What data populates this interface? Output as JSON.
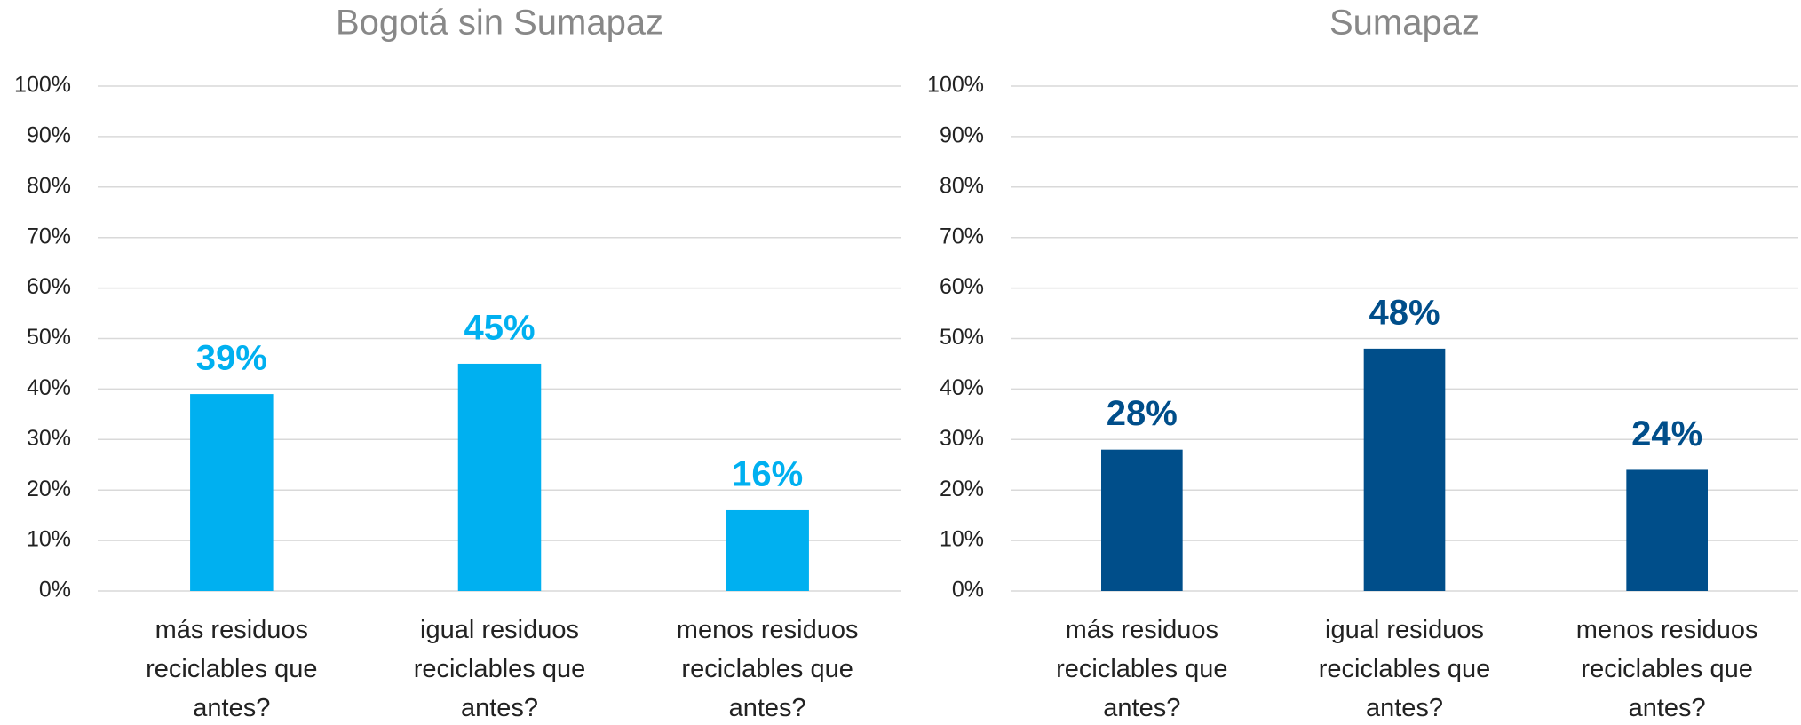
{
  "chart_data": [
    {
      "type": "bar",
      "title": "Bogotá sin Sumapaz",
      "categories": [
        "más residuos reciclables que antes?",
        "igual residuos reciclables que antes?",
        "menos residuos reciclables que antes?"
      ],
      "values": [
        39,
        45,
        16
      ],
      "value_labels": [
        "39%",
        "45%",
        "16%"
      ],
      "color": "#00b0f0",
      "ylim": [
        0,
        100
      ],
      "yticks": [
        {
          "value": 0,
          "label": "0%"
        },
        {
          "value": 10,
          "label": "10%"
        },
        {
          "value": 20,
          "label": "20%"
        },
        {
          "value": 30,
          "label": "30%"
        },
        {
          "value": 40,
          "label": "40%"
        },
        {
          "value": 50,
          "label": "50%"
        },
        {
          "value": 60,
          "label": "60%"
        },
        {
          "value": 70,
          "label": "70%"
        },
        {
          "value": 80,
          "label": "80%"
        },
        {
          "value": 90,
          "label": "90%"
        },
        {
          "value": 100,
          "label": "100%"
        }
      ],
      "grid": true
    },
    {
      "type": "bar",
      "title": "Sumapaz",
      "categories": [
        "más residuos reciclables que antes?",
        "igual residuos reciclables que antes?",
        "menos residuos reciclables que antes?"
      ],
      "values": [
        28,
        48,
        24
      ],
      "value_labels": [
        "28%",
        "48%",
        "24%"
      ],
      "color": "#004e8a",
      "ylim": [
        0,
        100
      ],
      "yticks": [
        {
          "value": 0,
          "label": "0%"
        },
        {
          "value": 10,
          "label": "10%"
        },
        {
          "value": 20,
          "label": "20%"
        },
        {
          "value": 30,
          "label": "30%"
        },
        {
          "value": 40,
          "label": "40%"
        },
        {
          "value": 50,
          "label": "50%"
        },
        {
          "value": 60,
          "label": "60%"
        },
        {
          "value": 70,
          "label": "70%"
        },
        {
          "value": 80,
          "label": "80%"
        },
        {
          "value": 90,
          "label": "90%"
        },
        {
          "value": 100,
          "label": "100%"
        }
      ],
      "grid": true
    }
  ]
}
